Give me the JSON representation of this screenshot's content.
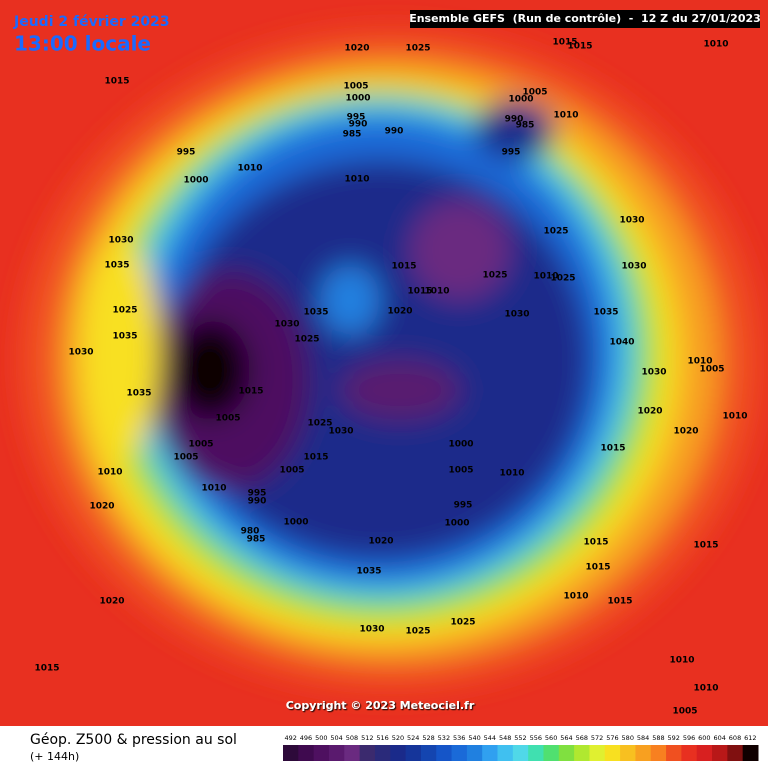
{
  "header": {
    "date": "Jeudi 2 février 2023",
    "time": "13:00 locale",
    "run": "Ensemble GEFS  (Run de contrôle)  -  12 Z du 27/01/2023"
  },
  "map": {
    "copyright": "Copyright © 2023 Meteociel.fr",
    "pressure_labels": [
      1020,
      1025,
      1015,
      1015,
      1010,
      1015,
      1005,
      1000,
      1000,
      1005,
      995,
      990,
      985,
      990,
      990,
      985,
      1010,
      995,
      995,
      1010,
      1000,
      1010,
      1030,
      1030,
      1025,
      1035,
      1015,
      1025,
      1010,
      1025,
      1030,
      1015,
      1010,
      1025,
      1020,
      1035,
      1035,
      1030,
      1030,
      1035,
      1025,
      1040,
      1030,
      1010,
      1005,
      1030,
      1035,
      1015,
      1020,
      1010,
      1005,
      1025,
      1030,
      1020,
      1005,
      1000,
      1015,
      1005,
      1015,
      1005,
      1005,
      1010,
      1010,
      1010,
      995,
      990,
      995,
      1020,
      1000,
      1000,
      980,
      985,
      1020,
      1015,
      1015,
      1015,
      1035,
      1010,
      1015,
      1020,
      1025,
      1030,
      1025,
      1015,
      1010,
      1010,
      1005
    ]
  },
  "footer": {
    "title": "Géop. Z500 & pression au sol",
    "lead": "(+ 144h)"
  },
  "legend": {
    "scale": [
      492,
      496,
      500,
      504,
      508,
      512,
      516,
      520,
      524,
      528,
      532,
      536,
      540,
      544,
      548,
      552,
      556,
      560,
      564,
      568,
      572,
      576,
      580,
      584,
      588,
      592,
      596,
      600,
      604,
      608,
      612
    ],
    "colors": [
      "#2d0a3a",
      "#3f0a4f",
      "#4e1060",
      "#5a1a6e",
      "#6a2a80",
      "#3b2a6e",
      "#2a2a7a",
      "#1a2a8a",
      "#15359a",
      "#1445b0",
      "#1555c8",
      "#1a6ad8",
      "#2080e0",
      "#30a0f0",
      "#40c0f0",
      "#50d8e8",
      "#40e0b0",
      "#50e070",
      "#80e040",
      "#b0e830",
      "#e0f030",
      "#f8e020",
      "#f8c020",
      "#f8a020",
      "#f88020",
      "#f05020",
      "#e83020",
      "#d82020",
      "#b81818",
      "#801010",
      "#100000"
    ]
  }
}
